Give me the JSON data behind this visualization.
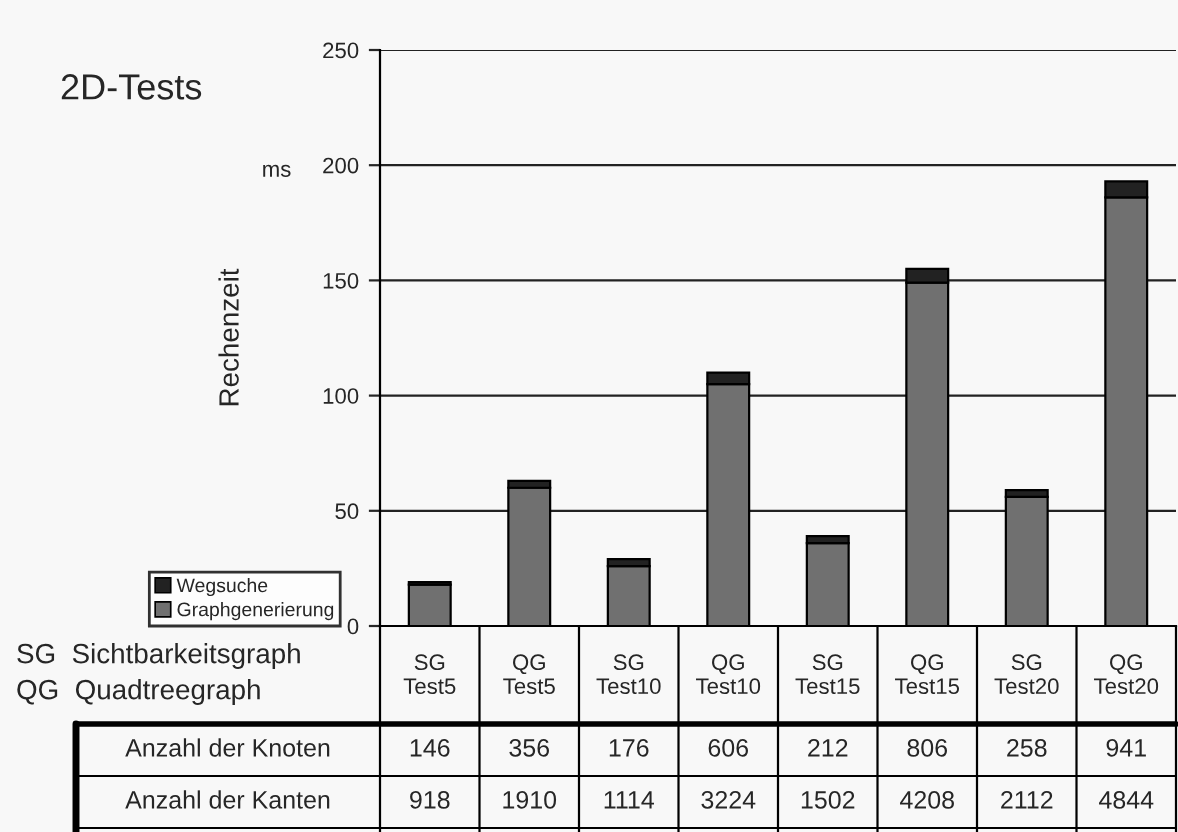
{
  "chart_data": {
    "type": "bar",
    "title": "2D-Tests",
    "ylabel": "Rechenzeit",
    "stacked": true,
    "categories": [
      "SG\nTest5",
      "QG\nTest5",
      "SG\nTest10",
      "QG\nTest10",
      "SG\nTest15",
      "QG\nTest15",
      "SG\nTest20",
      "QG\nTest20"
    ],
    "series": [
      {
        "name": "Graphgenerierung",
        "color": "#707070",
        "values": [
          18,
          60,
          26,
          105,
          36,
          149,
          56,
          186
        ]
      },
      {
        "name": "Wegsuche",
        "color": "#222222",
        "values": [
          1,
          3,
          3,
          5,
          3,
          6,
          3,
          7
        ]
      }
    ],
    "ylim": [
      0,
      250
    ],
    "yticks": [
      0,
      50,
      100,
      150,
      200,
      250
    ],
    "grid": "y",
    "legend": "bottom left",
    "annotations": [
      "ms",
      "SG  Sichtbarkeitsgraph",
      "QG  Quadtreegraph",
      "Anzahl der Knoten",
      "146",
      "356",
      "176",
      "606",
      "212",
      "806",
      "258",
      "941",
      "Anzahl der Kanten",
      "918",
      "1910",
      "1114",
      "3224",
      "1502",
      "4208",
      "2112",
      "4844"
    ]
  }
}
